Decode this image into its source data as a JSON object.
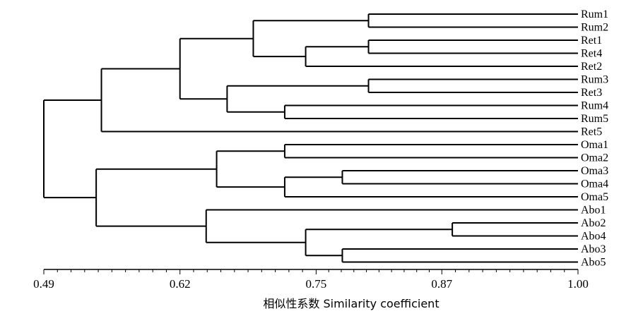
{
  "chart_data": {
    "type": "dendrogram",
    "x_axis": {
      "label": "相似性系数 Similarity coefficient",
      "range": [
        0.49,
        1.0
      ],
      "ticks": [
        "0.49",
        "0.62",
        "0.75",
        "0.87",
        "1.00"
      ],
      "tick_values": [
        0.49,
        0.62,
        0.75,
        0.87,
        1.0
      ]
    },
    "leaves": [
      "Rum1",
      "Rum2",
      "Ret1",
      "Ret4",
      "Ret2",
      "Rum3",
      "Ret3",
      "Rum4",
      "Rum5",
      "Ret5",
      "Oma1",
      "Oma2",
      "Oma3",
      "Oma4",
      "Oma5",
      "Abo1",
      "Abo2",
      "Abo4",
      "Abo3",
      "Abo5"
    ],
    "merges": [
      {
        "id": "n1",
        "children": [
          "Rum1",
          "Rum2"
        ],
        "similarity": 0.8
      },
      {
        "id": "n2",
        "children": [
          "Ret1",
          "Ret4"
        ],
        "similarity": 0.8
      },
      {
        "id": "n3",
        "children": [
          "n2",
          "Ret2"
        ],
        "similarity": 0.74
      },
      {
        "id": "n4",
        "children": [
          "n1",
          "n3"
        ],
        "similarity": 0.69
      },
      {
        "id": "n5",
        "children": [
          "Rum3",
          "Ret3"
        ],
        "similarity": 0.8
      },
      {
        "id": "n6",
        "children": [
          "Rum4",
          "Rum5"
        ],
        "similarity": 0.72
      },
      {
        "id": "n7",
        "children": [
          "n5",
          "n6"
        ],
        "similarity": 0.665
      },
      {
        "id": "n8",
        "children": [
          "n4",
          "n7"
        ],
        "similarity": 0.62
      },
      {
        "id": "n9",
        "children": [
          "n8",
          "Ret5"
        ],
        "similarity": 0.545
      },
      {
        "id": "n10",
        "children": [
          "Oma1",
          "Oma2"
        ],
        "similarity": 0.72
      },
      {
        "id": "n11",
        "children": [
          "Oma3",
          "Oma4"
        ],
        "similarity": 0.775
      },
      {
        "id": "n12",
        "children": [
          "n11",
          "Oma5"
        ],
        "similarity": 0.72
      },
      {
        "id": "n13",
        "children": [
          "n10",
          "n12"
        ],
        "similarity": 0.655
      },
      {
        "id": "n14",
        "children": [
          "Abo2",
          "Abo4"
        ],
        "similarity": 0.88
      },
      {
        "id": "n15",
        "children": [
          "Abo3",
          "Abo5"
        ],
        "similarity": 0.775
      },
      {
        "id": "n16",
        "children": [
          "n14",
          "n15"
        ],
        "similarity": 0.74
      },
      {
        "id": "n17",
        "children": [
          "Abo1",
          "n16"
        ],
        "similarity": 0.645
      },
      {
        "id": "n18",
        "children": [
          "n13",
          "n17"
        ],
        "similarity": 0.54
      },
      {
        "id": "n19",
        "children": [
          "n9",
          "n18"
        ],
        "similarity": 0.49
      }
    ]
  }
}
